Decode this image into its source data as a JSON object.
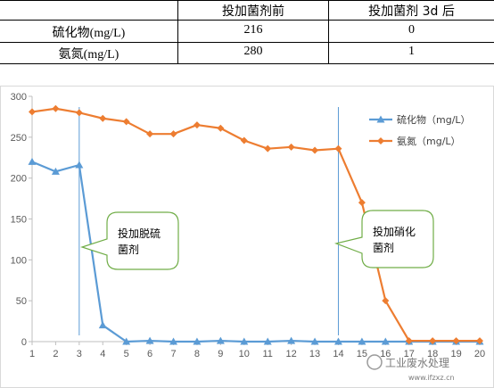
{
  "table": {
    "headers": [
      "",
      "投加菌剂前",
      "投加菌剂 3d 后"
    ],
    "rows": [
      {
        "label": "硫化物(mg/L)",
        "before": "216",
        "after": "0"
      },
      {
        "label": "氨氮(mg/L)",
        "before": "280",
        "after": "1"
      }
    ]
  },
  "chart_data": {
    "type": "line",
    "title": "",
    "xlabel": "",
    "ylabel": "",
    "x": [
      1,
      2,
      3,
      4,
      5,
      6,
      7,
      8,
      9,
      10,
      11,
      12,
      13,
      14,
      15,
      16,
      17,
      18,
      19,
      20
    ],
    "ylim": [
      0,
      300
    ],
    "yticks": [
      0,
      50,
      100,
      150,
      200,
      250,
      300
    ],
    "grid": false,
    "legend_position": "top-right",
    "series": [
      {
        "name": "硫化物（mg/L）",
        "color": "#5b9bd5",
        "marker": "triangle",
        "values": [
          220,
          208,
          216,
          20,
          0,
          1,
          0,
          0,
          1,
          0,
          0,
          1,
          0,
          0,
          0,
          0,
          0,
          0,
          0,
          0
        ]
      },
      {
        "name": "氨氮（mg/L）",
        "color": "#ed7d31",
        "marker": "diamond",
        "values": [
          281,
          285,
          280,
          273,
          269,
          254,
          254,
          265,
          261,
          246,
          236,
          238,
          234,
          236,
          170,
          50,
          1,
          1,
          1,
          1
        ]
      }
    ],
    "vlines": [
      3,
      14
    ],
    "annotations": [
      {
        "text_lines": [
          "投加脱硫",
          "菌剂"
        ],
        "x": 3,
        "y": 80
      },
      {
        "text_lines": [
          "投加硝化",
          "菌剂"
        ],
        "x": 14,
        "y": 80
      }
    ]
  },
  "watermark": {
    "main": "工业废水处理",
    "sub": "www.ifzxz.cn"
  },
  "caption_hint": "",
  "colors": {
    "table_line": "#000000",
    "frame": "#d9d9d9",
    "axis": "#bfbfbf",
    "callout": "#70ad47"
  }
}
